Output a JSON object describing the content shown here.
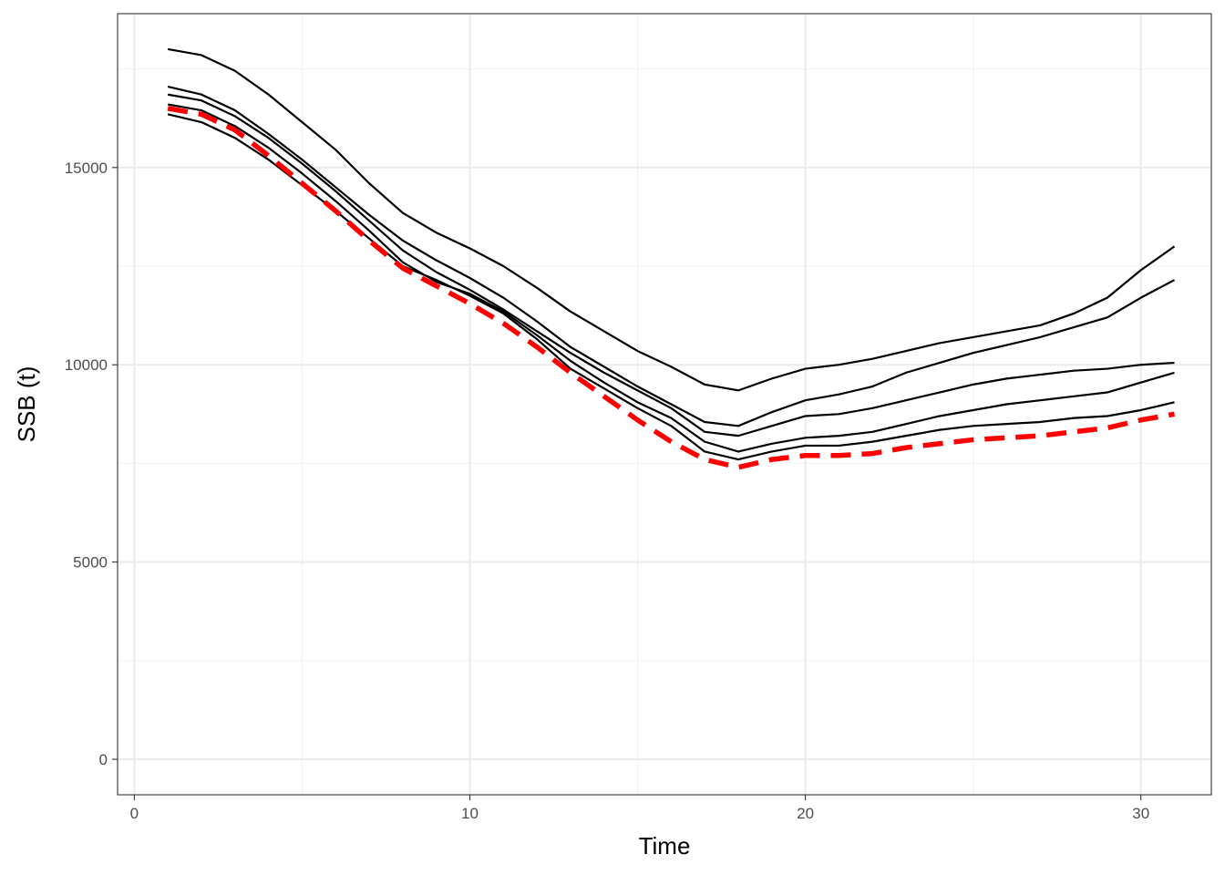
{
  "chart_data": {
    "type": "line",
    "title": "",
    "xlabel": "Time",
    "ylabel": "SSB (t)",
    "xlim": [
      -0.5,
      32.1
    ],
    "ylim": [
      -900,
      18900
    ],
    "x_ticks": [
      0,
      10,
      20,
      30
    ],
    "x_tick_labels": [
      "0",
      "10",
      "20",
      "30"
    ],
    "y_ticks": [
      0,
      5000,
      10000,
      15000
    ],
    "y_tick_labels": [
      "0",
      "5000",
      "10000",
      "15000"
    ],
    "x_minor_ticks": [
      5,
      15,
      25
    ],
    "y_minor_ticks": [
      2500,
      7500,
      12500,
      17500
    ],
    "grid": true,
    "theme": "bw",
    "x": [
      1,
      2,
      3,
      4,
      5,
      6,
      7,
      8,
      9,
      10,
      11,
      12,
      13,
      14,
      15,
      16,
      17,
      18,
      19,
      20,
      21,
      22,
      23,
      24,
      25,
      26,
      27,
      28,
      29,
      30,
      31
    ],
    "series": [
      {
        "color": "#000000",
        "style": "solid",
        "values": [
          18000,
          17850,
          17450,
          16850,
          16150,
          15450,
          14600,
          13850,
          13350,
          12950,
          12500,
          11950,
          11350,
          10850,
          10350,
          9950,
          9500,
          9350,
          9650,
          9900,
          10000,
          10150,
          10350,
          10550,
          10700,
          10850,
          11000,
          11300,
          11700,
          12400,
          13000
        ]
      },
      {
        "color": "#000000",
        "style": "solid",
        "values": [
          17050,
          16850,
          16450,
          15850,
          15200,
          14500,
          13800,
          13150,
          12650,
          12200,
          11700,
          11100,
          10450,
          9950,
          9450,
          9000,
          8550,
          8450,
          8800,
          9100,
          9250,
          9450,
          9800,
          10050,
          10300,
          10500,
          10700,
          10950,
          11200,
          11700,
          12150
        ]
      },
      {
        "color": "#000000",
        "style": "solid",
        "values": [
          16850,
          16700,
          16300,
          15750,
          15100,
          14400,
          13650,
          12900,
          12350,
          11900,
          11400,
          10850,
          10300,
          9800,
          9350,
          8900,
          8300,
          8200,
          8450,
          8700,
          8750,
          8900,
          9100,
          9300,
          9500,
          9650,
          9750,
          9850,
          9900,
          10000,
          10050
        ]
      },
      {
        "color": "#000000",
        "style": "solid",
        "values": [
          16600,
          16450,
          16050,
          15500,
          14850,
          14150,
          13400,
          12600,
          12100,
          11800,
          11350,
          10750,
          10100,
          9550,
          9050,
          8650,
          8050,
          7800,
          8000,
          8150,
          8200,
          8300,
          8500,
          8700,
          8850,
          9000,
          9100,
          9200,
          9300,
          9550,
          9800
        ]
      },
      {
        "color": "#000000",
        "style": "solid",
        "values": [
          16350,
          16150,
          15750,
          15200,
          14550,
          13900,
          13200,
          12500,
          12150,
          11750,
          11300,
          10650,
          9900,
          9400,
          8900,
          8450,
          7800,
          7600,
          7800,
          7950,
          7950,
          8050,
          8200,
          8350,
          8450,
          8500,
          8550,
          8650,
          8700,
          8850,
          9050
        ]
      },
      {
        "color": "#ff0000",
        "style": "dashed",
        "values": [
          16500,
          16350,
          15950,
          15300,
          14600,
          13900,
          13150,
          12450,
          12000,
          11550,
          11050,
          10450,
          9800,
          9200,
          8600,
          8050,
          7600,
          7400,
          7600,
          7700,
          7700,
          7750,
          7900,
          8000,
          8100,
          8150,
          8200,
          8300,
          8400,
          8600,
          8750
        ]
      }
    ]
  }
}
